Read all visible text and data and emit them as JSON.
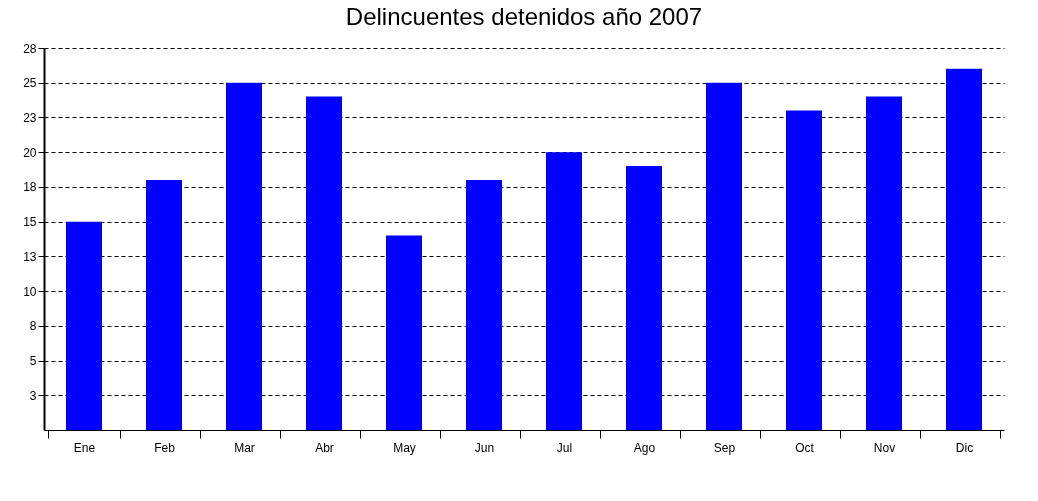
{
  "chart_data": {
    "type": "bar",
    "title": "Delincuentes detenidos año 2007",
    "categories": [
      "Ene",
      "Feb",
      "Mar",
      "Abr",
      "May",
      "Jun",
      "Jul",
      "Ago",
      "Sep",
      "Oct",
      "Nov",
      "Dic"
    ],
    "values": [
      15,
      18,
      25,
      24,
      14,
      18,
      20,
      19,
      25,
      23,
      24,
      26
    ],
    "color": "#0000ff",
    "ylim": [
      0,
      27.5
    ],
    "yticks": [
      {
        "value": 2.5,
        "label": "3"
      },
      5,
      {
        "value": 7.5,
        "label": "8"
      },
      10,
      {
        "value": 12.5,
        "label": "13"
      },
      15,
      {
        "value": 17.5,
        "label": "18"
      },
      20,
      {
        "value": 22.5,
        "label": "23"
      },
      25,
      {
        "value": 27.5,
        "label": "28"
      }
    ],
    "grid": "y"
  }
}
